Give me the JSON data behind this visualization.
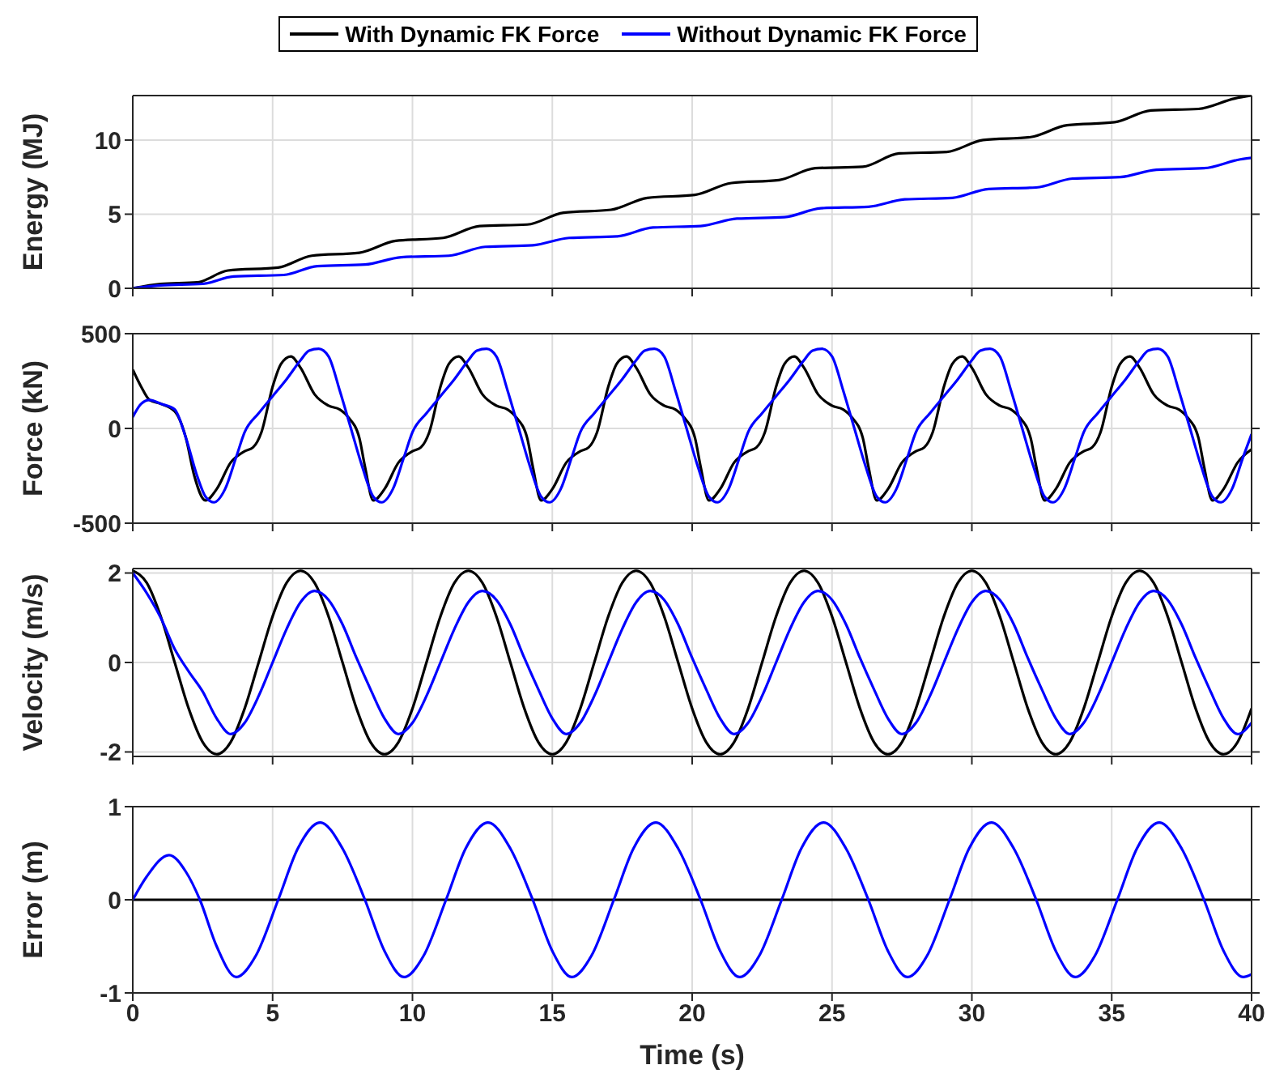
{
  "chart_data": [
    {
      "type": "line",
      "ylabel": "Energy (MJ)",
      "xlim": [
        0,
        40
      ],
      "xticks": [
        0,
        5,
        10,
        15,
        20,
        25,
        30,
        35,
        40
      ],
      "ylim": [
        0,
        13
      ],
      "yticks": [
        0,
        5,
        10
      ],
      "grid": true,
      "legend": "top",
      "tick_labels": "y",
      "series": [
        {
          "name": "With Dynamic FK Force",
          "color": "#000000",
          "x": [
            0,
            1,
            2.3,
            3.4,
            5.2,
            6.4,
            8.1,
            9.4,
            11.1,
            12.4,
            14.1,
            15.4,
            17.1,
            18.4,
            20.1,
            21.4,
            23.1,
            24.4,
            26.1,
            27.4,
            29.1,
            30.4,
            32.1,
            33.4,
            35.1,
            36.4,
            38.1,
            39.4,
            40
          ],
          "values": [
            0,
            0.3,
            0.4,
            1.2,
            1.4,
            2.2,
            2.4,
            3.2,
            3.4,
            4.2,
            4.3,
            5.1,
            5.3,
            6.1,
            6.3,
            7.1,
            7.3,
            8.1,
            8.2,
            9.1,
            9.2,
            10,
            10.2,
            11,
            11.2,
            12,
            12.1,
            12.8,
            13
          ]
        },
        {
          "name": "Without Dynamic FK Force",
          "color": "#0000ff",
          "x": [
            0,
            1,
            2.5,
            3.6,
            5.4,
            6.6,
            8.3,
            9.6,
            11.3,
            12.6,
            14.3,
            15.6,
            17.3,
            18.6,
            20.3,
            21.6,
            23.3,
            24.6,
            26.3,
            27.6,
            29.3,
            30.6,
            32.3,
            33.6,
            35.3,
            36.6,
            38.3,
            39.6,
            40
          ],
          "values": [
            0,
            0.2,
            0.3,
            0.8,
            0.9,
            1.5,
            1.6,
            2.1,
            2.2,
            2.8,
            2.9,
            3.4,
            3.5,
            4.1,
            4.2,
            4.7,
            4.8,
            5.4,
            5.5,
            6,
            6.1,
            6.7,
            6.8,
            7.4,
            7.5,
            8,
            8.1,
            8.7,
            8.8
          ]
        }
      ]
    },
    {
      "type": "line",
      "ylabel": "Force (kN)",
      "xlim": [
        0,
        40
      ],
      "xticks": [
        0,
        5,
        10,
        15,
        20,
        25,
        30,
        35,
        40
      ],
      "ylim": [
        -500,
        500
      ],
      "yticks": [
        -500,
        0,
        500
      ],
      "grid": true,
      "tick_labels": "y",
      "series": [
        {
          "color": "#000000",
          "x": [
            0,
            0.3,
            0.6,
            1,
            1.5,
            1.9,
            2.2,
            2.6,
            3,
            3.5,
            4,
            4.3,
            4.6,
            5,
            5.3,
            5.65,
            6,
            6.5,
            7,
            7.4,
            7.7,
            8.1,
            8.3,
            8.6,
            9,
            9.5,
            10,
            10.3,
            10.6,
            11,
            11.3,
            11.65,
            12,
            12.5,
            13,
            13.4,
            13.7,
            14.1,
            14.3,
            14.6,
            15,
            15.5,
            16,
            16.3,
            16.6,
            17,
            17.3,
            17.65,
            18,
            18.5,
            19,
            19.4,
            19.7,
            20.1,
            20.3,
            20.6,
            21,
            21.5,
            22,
            22.3,
            22.6,
            23,
            23.3,
            23.65,
            24,
            24.5,
            25,
            25.4,
            25.7,
            26.1,
            26.3,
            26.6,
            27,
            27.5,
            28,
            28.3,
            28.6,
            29,
            29.3,
            29.65,
            30,
            30.5,
            31,
            31.4,
            31.7,
            32.1,
            32.3,
            32.6,
            33,
            33.5,
            34,
            34.3,
            34.6,
            35,
            35.3,
            35.65,
            36,
            36.5,
            37,
            37.4,
            37.7,
            38.1,
            38.3,
            38.6,
            39,
            39.5,
            40
          ],
          "values": [
            310,
            220,
            150,
            130,
            90,
            -50,
            -250,
            -380,
            -320,
            -180,
            -120,
            -100,
            -20,
            220,
            340,
            380,
            320,
            180,
            120,
            100,
            60,
            -50,
            -200,
            -380,
            -320,
            -180,
            -120,
            -100,
            -20,
            220,
            340,
            380,
            320,
            180,
            120,
            100,
            60,
            -50,
            -200,
            -380,
            -320,
            -180,
            -120,
            -100,
            -20,
            220,
            340,
            380,
            320,
            180,
            120,
            100,
            60,
            -50,
            -200,
            -380,
            -320,
            -180,
            -120,
            -100,
            -20,
            220,
            340,
            380,
            320,
            180,
            120,
            100,
            60,
            -50,
            -200,
            -380,
            -320,
            -180,
            -120,
            -100,
            -20,
            220,
            340,
            380,
            320,
            180,
            120,
            100,
            60,
            -50,
            -200,
            -380,
            -320,
            -180,
            -120,
            -100,
            -20,
            220,
            340,
            380,
            320,
            180,
            120,
            100,
            60,
            -50,
            -200,
            -380,
            -320,
            -180,
            -110
          ]
        },
        {
          "color": "#0000ff",
          "x": [
            0,
            0.3,
            0.6,
            1,
            1.5,
            1.9,
            2.3,
            2.6,
            2.9,
            3.3,
            3.7,
            4,
            4.5,
            5,
            5.5,
            6,
            6.3,
            6.65,
            7,
            7.4,
            7.8,
            8.2,
            8.6,
            8.9,
            9.3,
            9.7,
            10,
            10.5,
            11,
            11.5,
            12,
            12.3,
            12.65,
            13,
            13.4,
            13.8,
            14.2,
            14.6,
            14.9,
            15.3,
            15.7,
            16,
            16.5,
            17,
            17.5,
            18,
            18.3,
            18.65,
            19,
            19.4,
            19.8,
            20.2,
            20.6,
            20.9,
            21.3,
            21.7,
            22,
            22.5,
            23,
            23.5,
            24,
            24.3,
            24.65,
            25,
            25.4,
            25.8,
            26.2,
            26.6,
            26.9,
            27.3,
            27.7,
            28,
            28.5,
            29,
            29.5,
            30,
            30.3,
            30.65,
            31,
            31.4,
            31.8,
            32.2,
            32.6,
            32.9,
            33.3,
            33.7,
            34,
            34.5,
            35,
            35.5,
            36,
            36.3,
            36.65,
            37,
            37.4,
            37.8,
            38.2,
            38.6,
            38.9,
            39.3,
            39.7,
            40
          ],
          "values": [
            60,
            130,
            150,
            130,
            100,
            -50,
            -250,
            -360,
            -390,
            -320,
            -150,
            -20,
            80,
            170,
            260,
            360,
            410,
            420,
            380,
            200,
            0,
            -200,
            -360,
            -390,
            -320,
            -150,
            -20,
            80,
            170,
            260,
            360,
            410,
            420,
            380,
            200,
            0,
            -200,
            -360,
            -390,
            -320,
            -150,
            -20,
            80,
            170,
            260,
            360,
            410,
            420,
            380,
            200,
            0,
            -200,
            -360,
            -390,
            -320,
            -150,
            -20,
            80,
            170,
            260,
            360,
            410,
            420,
            380,
            200,
            0,
            -200,
            -360,
            -390,
            -320,
            -150,
            -20,
            80,
            170,
            260,
            360,
            410,
            420,
            380,
            200,
            0,
            -200,
            -360,
            -390,
            -320,
            -150,
            -20,
            80,
            170,
            260,
            360,
            410,
            420,
            380,
            200,
            0,
            -200,
            -360,
            -390,
            -320,
            -150,
            -30
          ]
        }
      ]
    },
    {
      "type": "line",
      "ylabel": "Velocity (m/s)",
      "xlim": [
        0,
        40
      ],
      "xticks": [
        0,
        5,
        10,
        15,
        20,
        25,
        30,
        35,
        40
      ],
      "ylim": [
        -2.1,
        2.1
      ],
      "yticks": [
        -2,
        0,
        2
      ],
      "grid": true,
      "tick_labels": "y",
      "x": [
        0,
        0.5,
        1,
        1.5,
        2,
        2.5,
        3,
        3.5,
        4,
        4.5,
        5,
        5.5,
        6,
        6.5,
        7,
        7.5,
        8,
        8.5,
        9,
        9.5,
        10,
        10.5,
        11,
        11.5,
        12,
        12.5,
        13,
        13.5,
        14,
        14.5,
        15,
        15.5,
        16,
        16.5,
        17,
        17.5,
        18,
        18.5,
        19,
        19.5,
        20,
        20.5,
        21,
        21.5,
        22,
        22.5,
        23,
        23.5,
        24,
        24.5,
        25,
        25.5,
        26,
        26.5,
        27,
        27.5,
        28,
        28.5,
        29,
        29.5,
        30,
        30.5,
        31,
        31.5,
        32,
        32.5,
        33,
        33.5,
        34,
        34.5,
        35,
        35.5,
        36,
        36.5,
        37,
        37.5,
        38,
        38.5,
        39,
        39.5,
        40
      ],
      "series": [
        {
          "color": "#000000",
          "values": [
            2.05,
            1.78,
            1.03,
            0,
            -1.03,
            -1.78,
            -2.05,
            -1.78,
            -1.03,
            0,
            1.03,
            1.78,
            2.05,
            1.78,
            1.03,
            0,
            -1.03,
            -1.78,
            -2.05,
            -1.78,
            -1.03,
            0,
            1.03,
            1.78,
            2.05,
            1.78,
            1.03,
            0,
            -1.03,
            -1.78,
            -2.05,
            -1.78,
            -1.03,
            0,
            1.03,
            1.78,
            2.05,
            1.78,
            1.03,
            0,
            -1.03,
            -1.78,
            -2.05,
            -1.78,
            -1.03,
            0,
            1.03,
            1.78,
            2.05,
            1.78,
            1.03,
            0,
            -1.03,
            -1.78,
            -2.05,
            -1.78,
            -1.03,
            0,
            1.03,
            1.78,
            2.05,
            1.78,
            1.03,
            0,
            -1.03,
            -1.78,
            -2.05,
            -1.78,
            -1.03,
            0,
            1.03,
            1.78,
            2.05,
            1.78,
            1.03,
            0,
            -1.03,
            -1.78,
            -2.05,
            -1.78,
            -1.03
          ]
        },
        {
          "color": "#0000ff",
          "values": [
            2,
            1.55,
            1,
            0.3,
            -0.2,
            -0.65,
            -1.25,
            -1.6,
            -1.35,
            -0.75,
            0,
            0.75,
            1.35,
            1.6,
            1.4,
            0.85,
            0.1,
            -0.6,
            -1.25,
            -1.6,
            -1.35,
            -0.75,
            0,
            0.75,
            1.35,
            1.6,
            1.4,
            0.85,
            0.1,
            -0.6,
            -1.25,
            -1.6,
            -1.35,
            -0.75,
            0,
            0.75,
            1.35,
            1.6,
            1.4,
            0.85,
            0.1,
            -0.6,
            -1.25,
            -1.6,
            -1.35,
            -0.75,
            0,
            0.75,
            1.35,
            1.6,
            1.4,
            0.85,
            0.1,
            -0.6,
            -1.25,
            -1.6,
            -1.35,
            -0.75,
            0,
            0.75,
            1.35,
            1.6,
            1.4,
            0.85,
            0.1,
            -0.6,
            -1.25,
            -1.6,
            -1.35,
            -0.75,
            0,
            0.75,
            1.35,
            1.6,
            1.4,
            0.85,
            0.1,
            -0.6,
            -1.25,
            -1.6,
            -1.35
          ]
        }
      ]
    },
    {
      "type": "line",
      "xlabel": "Time (s)",
      "ylabel": "Error (m)",
      "xlim": [
        0,
        40
      ],
      "xticks": [
        0,
        5,
        10,
        15,
        20,
        25,
        30,
        35,
        40
      ],
      "ylim": [
        -1,
        1
      ],
      "yticks": [
        -1,
        0,
        1
      ],
      "grid": true,
      "series": [
        {
          "color": "#000000",
          "x": [
            0,
            40
          ],
          "values": [
            0,
            0
          ]
        },
        {
          "color": "#0000ff",
          "x": [
            0,
            0.5,
            1.3,
            1.9,
            2.4,
            3,
            3.7,
            4.4,
            5.2,
            5.9,
            6.7,
            7.5,
            8.3,
            9,
            9.7,
            10.4,
            11.2,
            11.9,
            12.7,
            13.5,
            14.3,
            15,
            15.7,
            16.4,
            17.2,
            17.9,
            18.7,
            19.5,
            20.3,
            21,
            21.7,
            22.4,
            23.2,
            23.9,
            24.7,
            25.5,
            26.3,
            27,
            27.7,
            28.4,
            29.2,
            29.9,
            30.7,
            31.5,
            32.3,
            33,
            33.7,
            34.4,
            35.2,
            35.9,
            36.7,
            37.5,
            38.3,
            39,
            39.7,
            40
          ],
          "values": [
            0,
            0.25,
            0.48,
            0.3,
            0,
            -0.5,
            -0.83,
            -0.6,
            0,
            0.55,
            0.83,
            0.55,
            0,
            -0.55,
            -0.83,
            -0.6,
            0,
            0.55,
            0.83,
            0.55,
            0,
            -0.55,
            -0.83,
            -0.6,
            0,
            0.55,
            0.83,
            0.55,
            0,
            -0.55,
            -0.83,
            -0.6,
            0,
            0.55,
            0.83,
            0.55,
            0,
            -0.55,
            -0.83,
            -0.6,
            0,
            0.55,
            0.83,
            0.55,
            0,
            -0.55,
            -0.83,
            -0.6,
            0,
            0.55,
            0.83,
            0.55,
            0,
            -0.55,
            -0.83,
            -0.8
          ]
        }
      ]
    }
  ]
}
